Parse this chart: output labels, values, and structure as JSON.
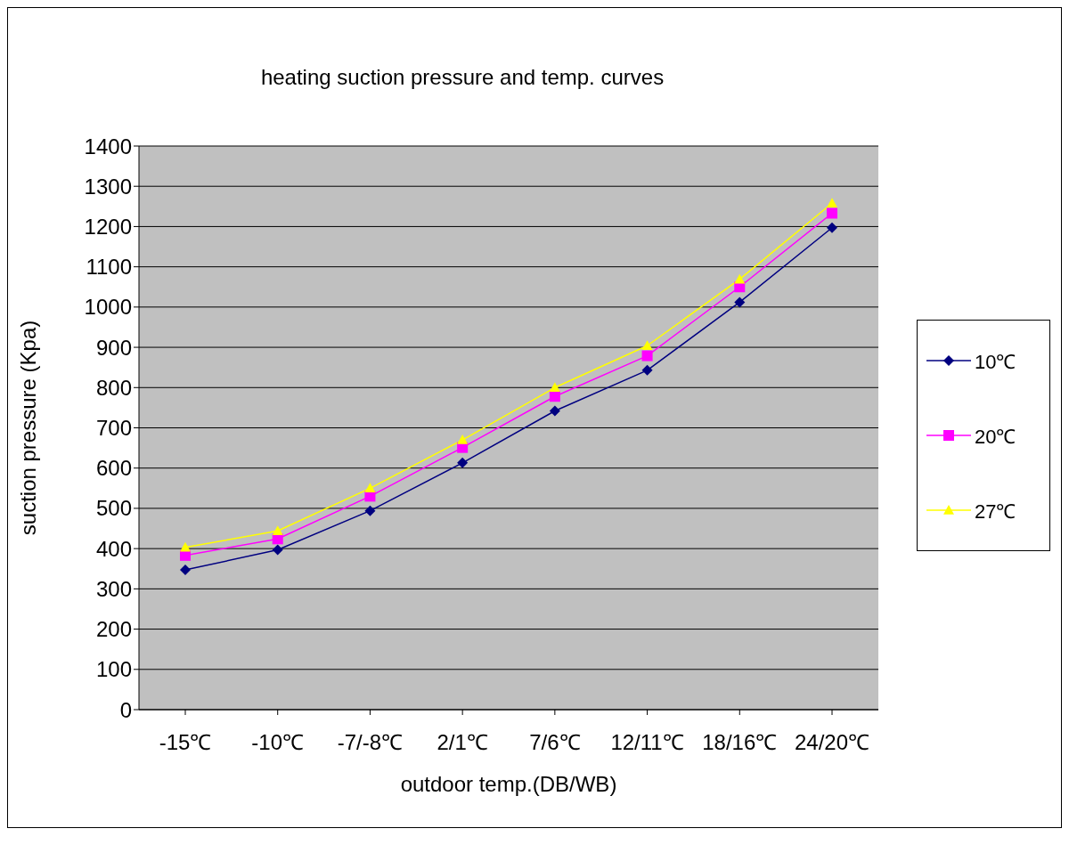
{
  "chart_data": {
    "type": "line",
    "title": "heating suction pressure and temp. curves",
    "xlabel": "outdoor temp.(DB/WB)",
    "ylabel": "suction pressure (Kpa)",
    "categories": [
      "-15℃",
      "-10℃",
      "-7/-8℃",
      "2/1℃",
      "7/6℃",
      "12/11℃",
      "18/16℃",
      "24/20℃"
    ],
    "series": [
      {
        "name": "10℃",
        "color": "#000080",
        "marker": "diamond",
        "values": [
          347,
          397,
          494,
          613,
          742,
          843,
          1012,
          1197
        ]
      },
      {
        "name": "20℃",
        "color": "#ff00ff",
        "marker": "square",
        "values": [
          383,
          424,
          530,
          651,
          778,
          879,
          1050,
          1233
        ]
      },
      {
        "name": "27℃",
        "color": "#ffff00",
        "marker": "triangle",
        "values": [
          403,
          444,
          550,
          670,
          800,
          904,
          1069,
          1258
        ]
      }
    ],
    "ylim": [
      0,
      1400
    ],
    "yticks": [
      0,
      100,
      200,
      300,
      400,
      500,
      600,
      700,
      800,
      900,
      1000,
      1100,
      1200,
      1300,
      1400
    ],
    "grid": "y",
    "legend": "right",
    "line_style": "solid"
  }
}
